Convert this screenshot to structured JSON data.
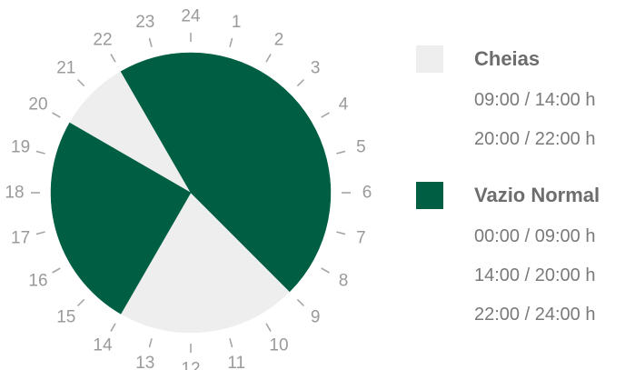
{
  "chart_data": {
    "type": "pie",
    "hours": [
      "1",
      "2",
      "3",
      "4",
      "5",
      "6",
      "7",
      "8",
      "9",
      "10",
      "11",
      "12",
      "13",
      "14",
      "15",
      "16",
      "17",
      "18",
      "19",
      "20",
      "21",
      "22",
      "23",
      "24"
    ],
    "series": [
      {
        "name": "Cheias",
        "color": "#eeeeee",
        "ranges": [
          "09:00 / 14:00 h",
          "20:00 / 22:00 h"
        ],
        "intervals": [
          [
            9,
            14
          ],
          [
            20,
            22
          ]
        ]
      },
      {
        "name": "Vazio Normal",
        "color": "#005e43",
        "ranges": [
          "00:00 / 09:00 h",
          "14:00 / 20:00 h",
          "22:00 / 24:00 h"
        ],
        "intervals": [
          [
            0,
            9
          ],
          [
            14,
            20
          ],
          [
            22,
            24
          ]
        ]
      }
    ]
  }
}
